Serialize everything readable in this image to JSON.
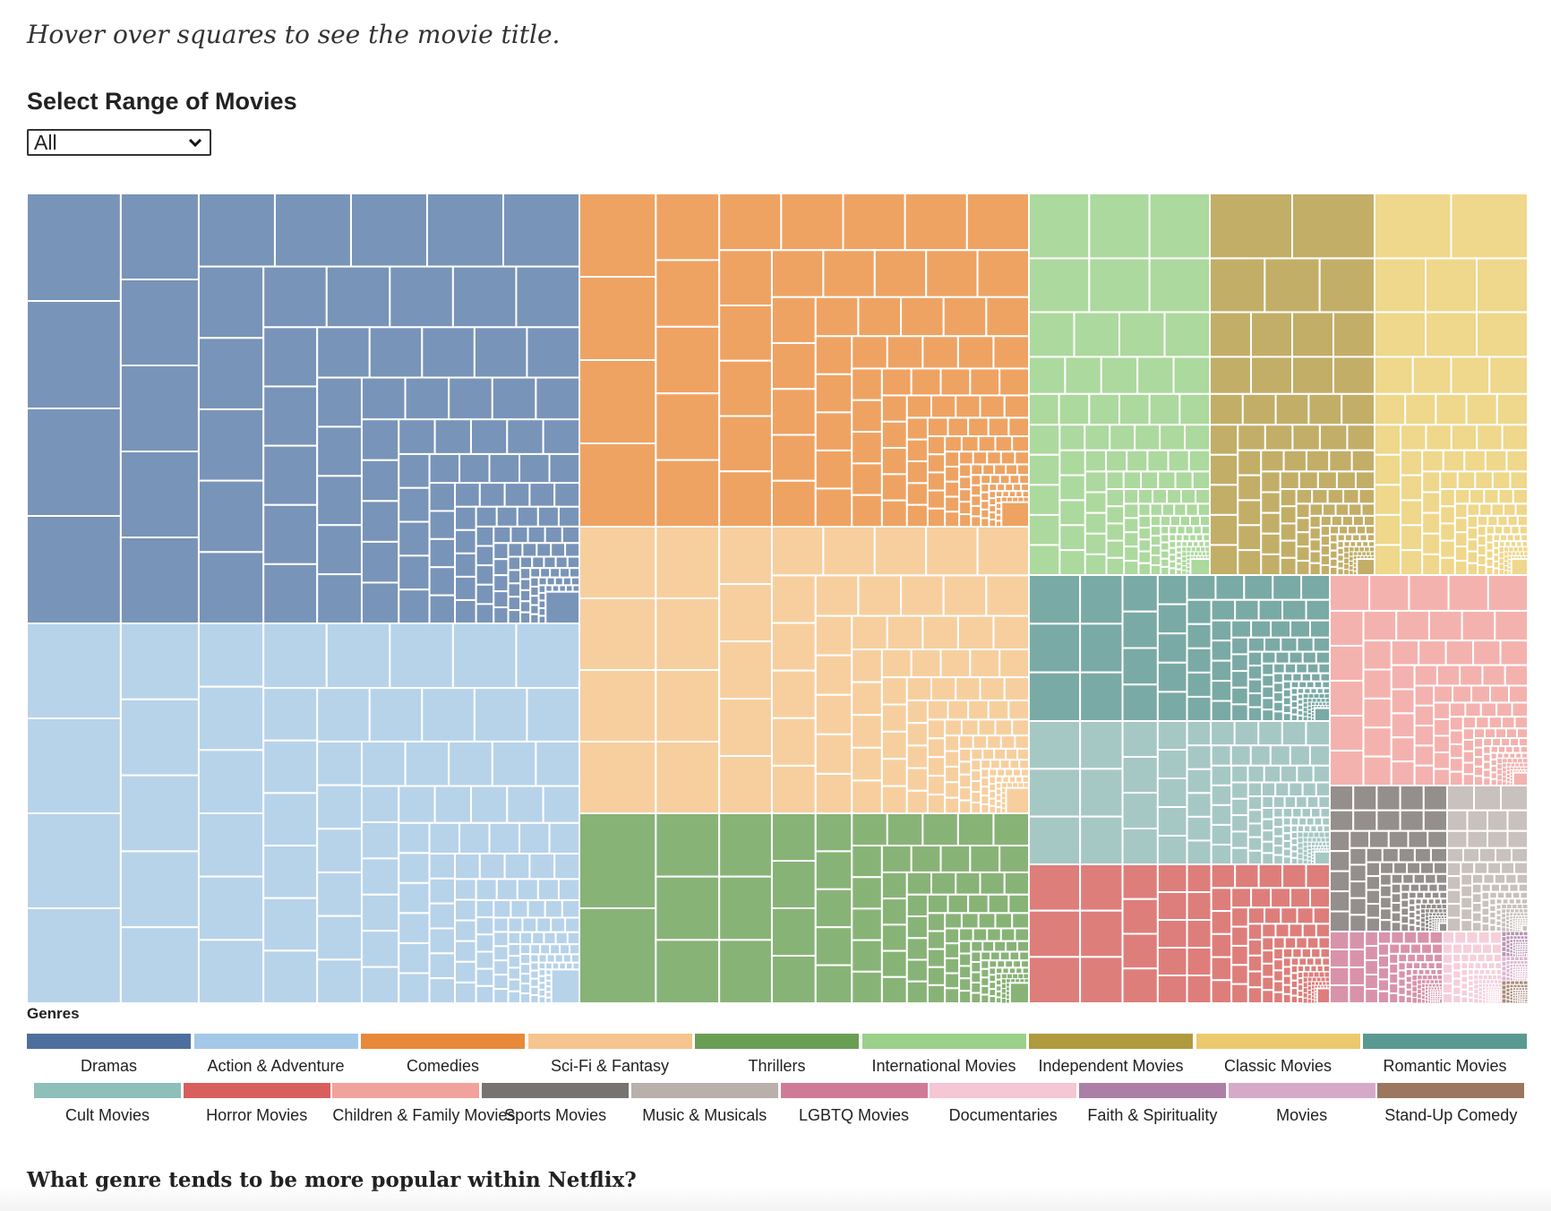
{
  "hint": "Hover over squares to see the movie title.",
  "select": {
    "title": "Select Range of Movies",
    "value": "All"
  },
  "question": "What genre tends to be more popular within Netflix?",
  "chart_data": {
    "type": "treemap",
    "legend_title": "Genres",
    "legend_placement": "bottom",
    "genres": [
      {
        "name": "Dramas",
        "color": "#4e6f9e",
        "tile_color": "#7894b8"
      },
      {
        "name": "Action & Adventure",
        "color": "#a4c8e8",
        "tile_color": "#b7d3ea"
      },
      {
        "name": "Comedies",
        "color": "#e8893a",
        "tile_color": "#eea363"
      },
      {
        "name": "Sci-Fi & Fantasy",
        "color": "#f6c48e",
        "tile_color": "#f7cf9f"
      },
      {
        "name": "Thrillers",
        "color": "#6a9e55",
        "tile_color": "#88b377"
      },
      {
        "name": "International Movies",
        "color": "#9bd08a",
        "tile_color": "#acd99d"
      },
      {
        "name": "Independent Movies",
        "color": "#b09a3e",
        "tile_color": "#c3ae68"
      },
      {
        "name": "Classic Movies",
        "color": "#ebc96c",
        "tile_color": "#efd78b"
      },
      {
        "name": "Romantic Movies",
        "color": "#5a9992",
        "tile_color": "#7aaaa5"
      },
      {
        "name": "Cult Movies",
        "color": "#8fbfb9",
        "tile_color": "#a6c8c4"
      },
      {
        "name": "Horror Movies",
        "color": "#d95f5c",
        "tile_color": "#de7e7b"
      },
      {
        "name": "Children & Family Movies",
        "color": "#f2a29d",
        "tile_color": "#f4b2af"
      },
      {
        "name": "Sports Movies",
        "color": "#777370",
        "tile_color": "#948f8c"
      },
      {
        "name": "Music & Musicals",
        "color": "#b9b0ab",
        "tile_color": "#c9c1bd"
      },
      {
        "name": "LGBTQ Movies",
        "color": "#cf7b97",
        "tile_color": "#d893ab"
      },
      {
        "name": "Documentaries",
        "color": "#f5c6d4",
        "tile_color": "#f6cfdb"
      },
      {
        "name": "Faith & Spirituality",
        "color": "#ad7fa6",
        "tile_color": "#b994b3"
      },
      {
        "name": "Movies",
        "color": "#d6a9c9",
        "tile_color": "#dcb6d1"
      },
      {
        "name": "Stand-Up Comedy",
        "color": "#9d7660",
        "tile_color": "#a98a78"
      }
    ]
  }
}
